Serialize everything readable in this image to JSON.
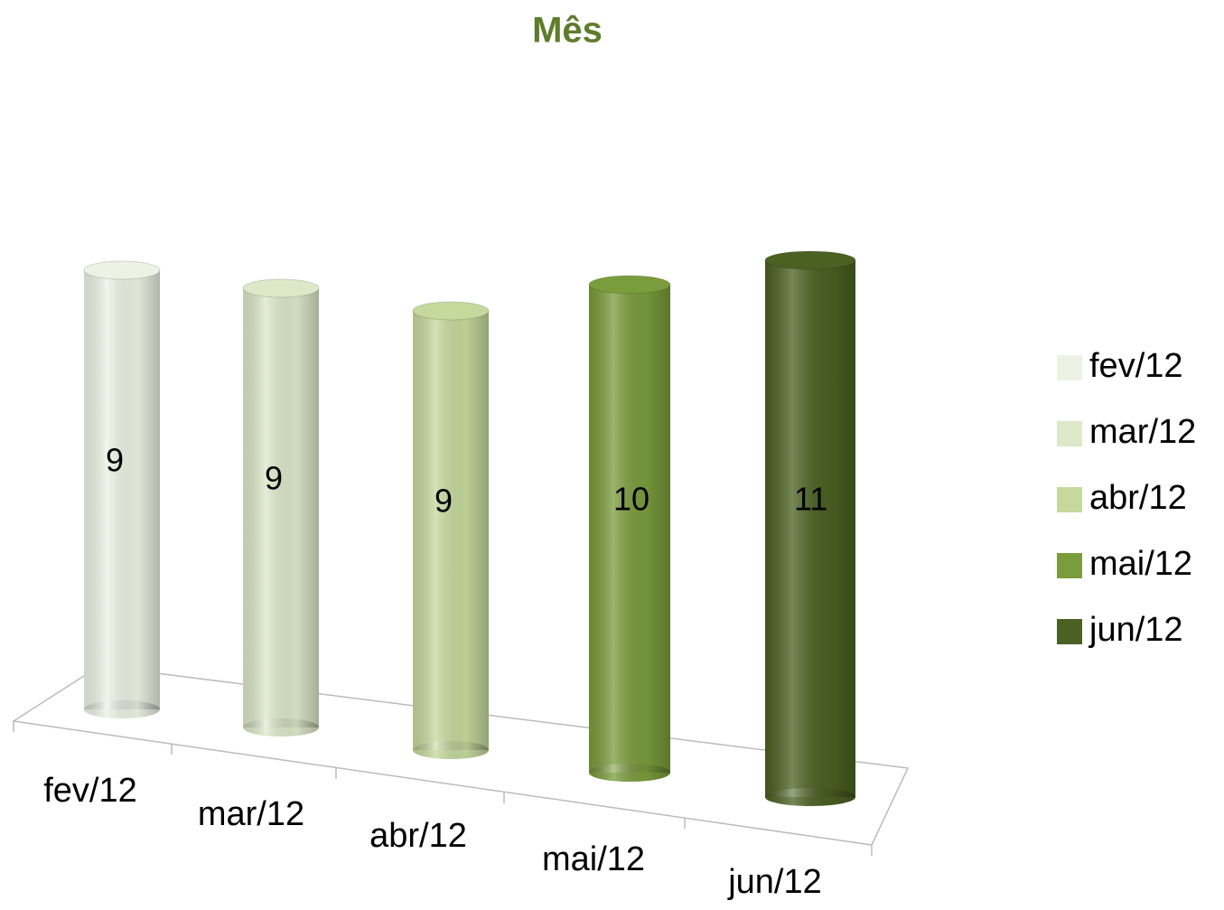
{
  "chart_data": {
    "type": "bar",
    "title": "Mês",
    "categories": [
      "fev/12",
      "mar/12",
      "abr/12",
      "mai/12",
      "jun/12"
    ],
    "values": [
      9,
      9,
      9,
      10,
      11
    ],
    "colors": [
      "#eef2e4",
      "#dde8c9",
      "#c5d99d",
      "#7a9c3c",
      "#4b6122"
    ]
  }
}
